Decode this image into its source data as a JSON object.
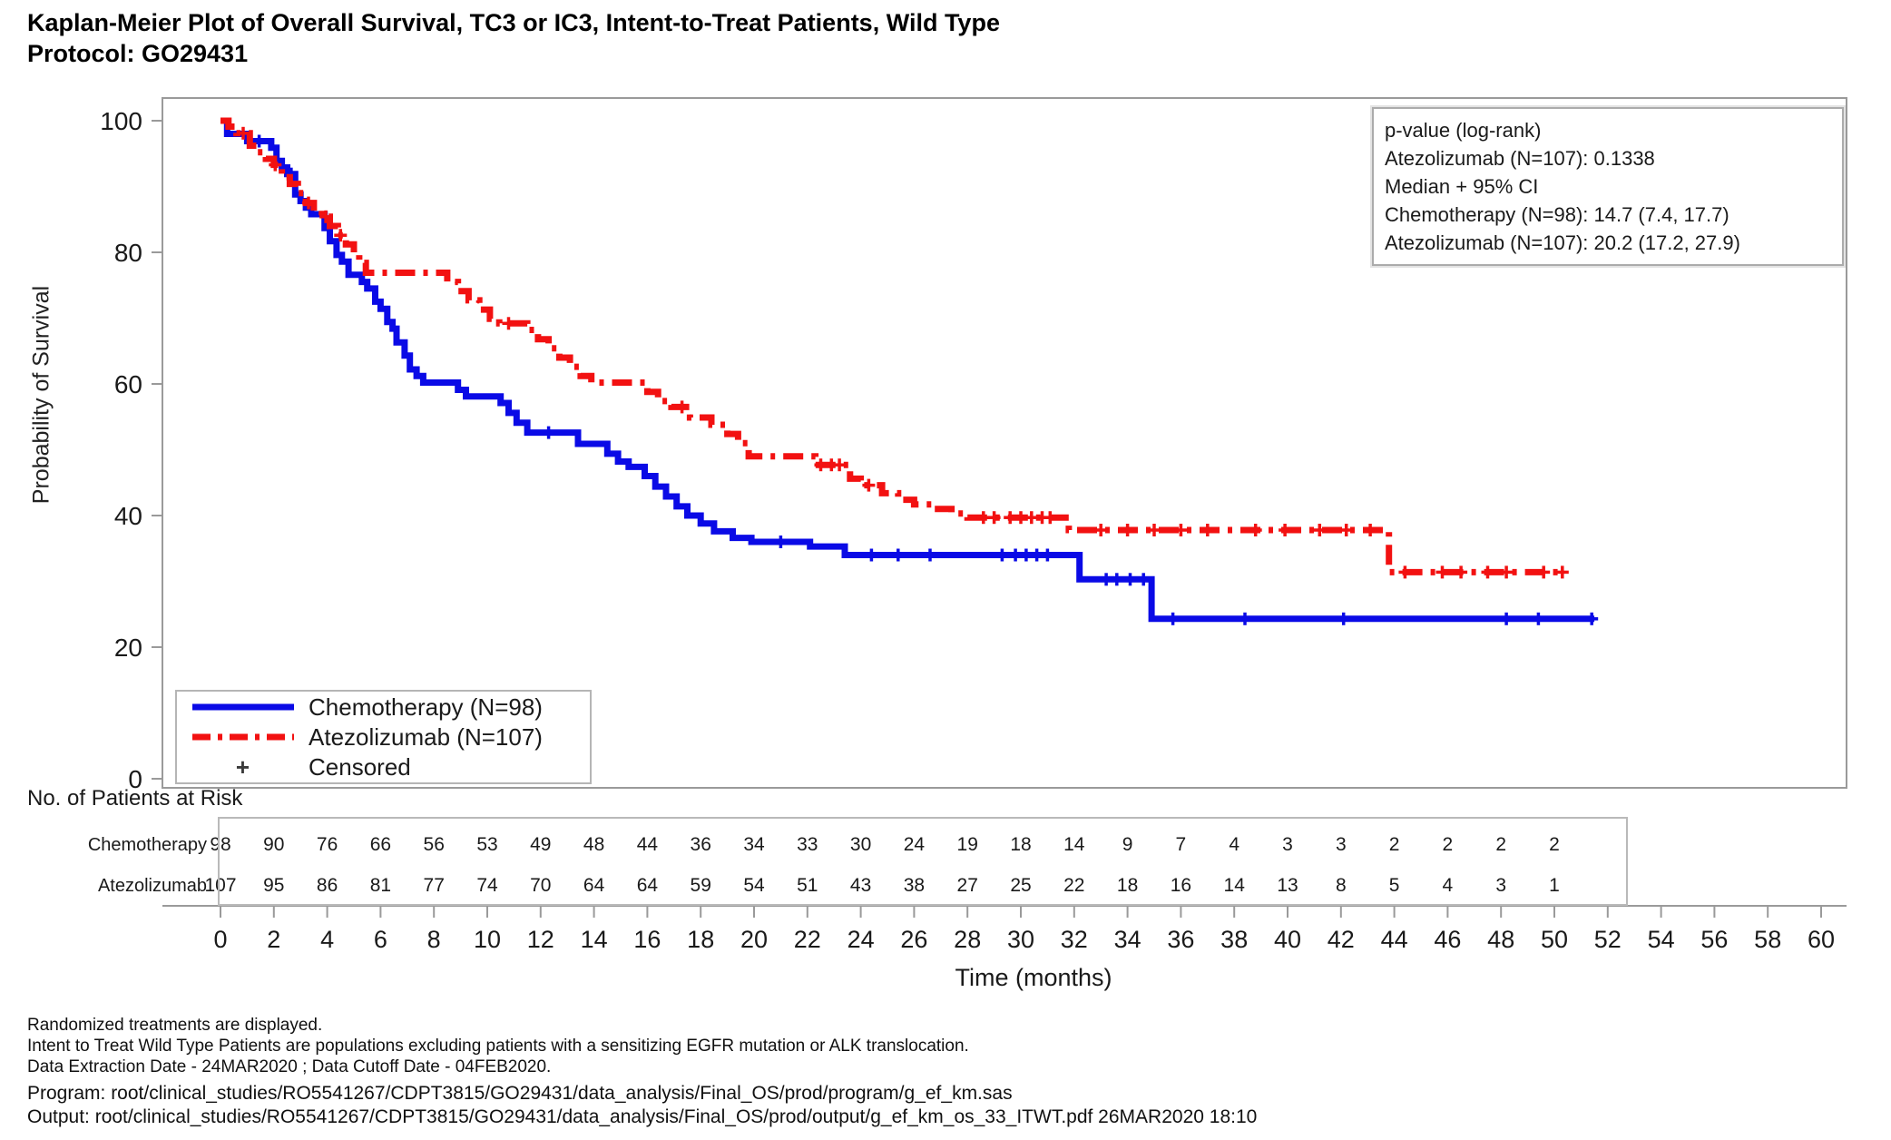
{
  "title": {
    "line1": "Kaplan-Meier Plot of Overall Survival, TC3 or IC3, Intent-to-Treat Patients, Wild Type",
    "line2": "Protocol: GO29431"
  },
  "stats_box": {
    "lines": [
      "p-value (log-rank)",
      "Atezolizumab (N=107): 0.1338",
      "Median + 95% CI",
      "Chemotherapy (N=98): 14.7 (7.4, 17.7)",
      "Atezolizumab (N=107): 20.2 (17.2, 27.9)"
    ]
  },
  "legend": {
    "items": [
      {
        "label": "Chemotherapy (N=98)",
        "glyph": "solid-line",
        "color": "#0a0ae6"
      },
      {
        "label": "Atezolizumab (N=107)",
        "glyph": "dash-dot-line",
        "color": "#f21111"
      },
      {
        "label": "Censored",
        "glyph": "plus-mark",
        "color": "#3a3a3a",
        "symbol": "+"
      }
    ]
  },
  "risk_table": {
    "title": "No. of Patients at Risk",
    "time_points": [
      0,
      2,
      4,
      6,
      8,
      10,
      12,
      14,
      16,
      18,
      20,
      22,
      24,
      26,
      28,
      30,
      32,
      34,
      36,
      38,
      40,
      42,
      44,
      46,
      48,
      50
    ],
    "rows": [
      {
        "label": "Chemotherapy",
        "values": [
          98,
          90,
          76,
          66,
          56,
          53,
          49,
          48,
          44,
          36,
          34,
          33,
          30,
          24,
          19,
          18,
          14,
          9,
          7,
          4,
          3,
          3,
          2,
          2,
          2,
          2
        ]
      },
      {
        "label": "Atezolizumab",
        "values": [
          107,
          95,
          86,
          81,
          77,
          74,
          70,
          64,
          64,
          59,
          54,
          51,
          43,
          38,
          27,
          25,
          22,
          18,
          16,
          14,
          13,
          8,
          5,
          4,
          3,
          1
        ]
      }
    ]
  },
  "footnotes": [
    "Randomized treatments are displayed.",
    "Intent to Treat Wild Type Patients are populations excluding patients with a sensitizing EGFR mutation or ALK translocation.",
    "Data Extraction Date - 24MAR2020 ; Data Cutoff Date - 04FEB2020.",
    "Program: root/clinical_studies/RO5541267/CDPT3815/GO29431/data_analysis/Final_OS/prod/program/g_ef_km.sas",
    "Output: root/clinical_studies/RO5541267/CDPT3815/GO29431/data_analysis/Final_OS/prod/output/g_ef_km_os_33_ITWT.pdf 26MAR2020 18:10"
  ],
  "chart_data": {
    "type": "line",
    "subtype": "kaplan-meier-step",
    "title": "Kaplan-Meier Plot of Overall Survival, TC3 or IC3, Intent-to-Treat Patients, Wild Type",
    "xlabel": "Time (months)",
    "ylabel": "Probability of Survival",
    "xlim": [
      0,
      60
    ],
    "xtick_step": 2,
    "ylim": [
      0,
      100
    ],
    "yticks": [
      0,
      20,
      40,
      60,
      80,
      100
    ],
    "grid": false,
    "legend_position": "inside-bottom-left",
    "series": [
      {
        "name": "Chemotherapy (N=98)",
        "color": "#0a0ae6",
        "style": "solid",
        "end_time": 51.5,
        "points": [
          [
            0,
            100
          ],
          [
            0.25,
            98
          ],
          [
            1.0,
            96.9
          ],
          [
            1.9,
            95.9
          ],
          [
            2.1,
            93.9
          ],
          [
            2.3,
            92.9
          ],
          [
            2.5,
            91.9
          ],
          [
            2.8,
            88.8
          ],
          [
            3.0,
            87.8
          ],
          [
            3.2,
            86.8
          ],
          [
            3.4,
            85.8
          ],
          [
            3.9,
            83.7
          ],
          [
            4.1,
            81.7
          ],
          [
            4.35,
            79.6
          ],
          [
            4.55,
            78.6
          ],
          [
            4.8,
            76.6
          ],
          [
            5.3,
            75.5
          ],
          [
            5.5,
            74.5
          ],
          [
            5.8,
            72.5
          ],
          [
            6.0,
            71.4
          ],
          [
            6.25,
            69.4
          ],
          [
            6.45,
            68.4
          ],
          [
            6.6,
            66.3
          ],
          [
            6.9,
            64.3
          ],
          [
            7.1,
            62.2
          ],
          [
            7.35,
            61.2
          ],
          [
            7.6,
            60.2
          ],
          [
            8.9,
            59.1
          ],
          [
            9.2,
            58.1
          ],
          [
            10.5,
            57.1
          ],
          [
            10.8,
            55.6
          ],
          [
            11.1,
            54.1
          ],
          [
            11.5,
            52.6
          ],
          [
            13.4,
            50.9
          ],
          [
            14.5,
            49.4
          ],
          [
            14.9,
            48.2
          ],
          [
            15.3,
            47.4
          ],
          [
            15.9,
            46.0
          ],
          [
            16.3,
            44.4
          ],
          [
            16.7,
            42.9
          ],
          [
            17.1,
            41.4
          ],
          [
            17.5,
            40.0
          ],
          [
            18.0,
            38.8
          ],
          [
            18.5,
            37.6
          ],
          [
            19.2,
            36.6
          ],
          [
            19.9,
            36.0
          ],
          [
            22.1,
            35.3
          ],
          [
            23.4,
            34.0
          ],
          [
            32.2,
            30.3
          ],
          [
            34.9,
            24.3
          ]
        ],
        "censored": [
          [
            1.15,
            96.9
          ],
          [
            1.45,
            96.9
          ],
          [
            2.65,
            91.9
          ],
          [
            12.3,
            52.6
          ],
          [
            21.0,
            36.0
          ],
          [
            24.4,
            34.0
          ],
          [
            25.4,
            34.0
          ],
          [
            26.6,
            34.0
          ],
          [
            29.3,
            34.0
          ],
          [
            29.8,
            34.0
          ],
          [
            30.2,
            34.0
          ],
          [
            30.6,
            34.0
          ],
          [
            31.0,
            34.0
          ],
          [
            33.2,
            30.3
          ],
          [
            33.6,
            30.3
          ],
          [
            34.1,
            30.3
          ],
          [
            34.6,
            30.3
          ],
          [
            35.7,
            24.3
          ],
          [
            38.4,
            24.3
          ],
          [
            42.1,
            24.3
          ],
          [
            48.2,
            24.3
          ],
          [
            49.4,
            24.3
          ],
          [
            51.4,
            24.3
          ]
        ]
      },
      {
        "name": "Atezolizumab (N=107)",
        "color": "#f21111",
        "style": "dash-dot",
        "end_time": 50.4,
        "points": [
          [
            0,
            100
          ],
          [
            0.3,
            99.1
          ],
          [
            0.6,
            98.1
          ],
          [
            1.1,
            96.2
          ],
          [
            1.4,
            95.2
          ],
          [
            1.7,
            94.2
          ],
          [
            2.0,
            93.3
          ],
          [
            2.3,
            91.4
          ],
          [
            2.6,
            90.4
          ],
          [
            2.9,
            89.0
          ],
          [
            3.2,
            87.5
          ],
          [
            3.5,
            86.3
          ],
          [
            3.8,
            85.4
          ],
          [
            4.1,
            84.0
          ],
          [
            4.4,
            82.6
          ],
          [
            4.7,
            81.2
          ],
          [
            5.0,
            79.8
          ],
          [
            5.2,
            78.4
          ],
          [
            5.45,
            76.9
          ],
          [
            8.5,
            75.5
          ],
          [
            8.9,
            74.1
          ],
          [
            9.3,
            72.7
          ],
          [
            9.7,
            71.3
          ],
          [
            10.1,
            69.9
          ],
          [
            10.45,
            69.2
          ],
          [
            11.5,
            68.2
          ],
          [
            11.9,
            66.8
          ],
          [
            12.3,
            65.4
          ],
          [
            12.7,
            64.0
          ],
          [
            13.1,
            62.6
          ],
          [
            13.5,
            61.2
          ],
          [
            13.9,
            60.2
          ],
          [
            16.0,
            58.8
          ],
          [
            16.4,
            57.4
          ],
          [
            16.9,
            56.5
          ],
          [
            17.6,
            54.9
          ],
          [
            18.4,
            53.8
          ],
          [
            19.0,
            52.4
          ],
          [
            19.4,
            51.0
          ],
          [
            19.8,
            49.0
          ],
          [
            22.3,
            47.7
          ],
          [
            23.6,
            45.6
          ],
          [
            24.0,
            44.6
          ],
          [
            24.8,
            43.4
          ],
          [
            25.4,
            42.4
          ],
          [
            26.0,
            41.7
          ],
          [
            26.7,
            41.0
          ],
          [
            27.4,
            40.3
          ],
          [
            28.0,
            39.7
          ],
          [
            31.8,
            37.8
          ],
          [
            43.8,
            31.4
          ]
        ],
        "censored": [
          [
            0.85,
            98.1
          ],
          [
            2.05,
            93.3
          ],
          [
            3.3,
            87.5
          ],
          [
            3.95,
            85.4
          ],
          [
            4.5,
            82.6
          ],
          [
            10.8,
            69.2
          ],
          [
            17.3,
            56.5
          ],
          [
            22.5,
            47.7
          ],
          [
            22.9,
            47.7
          ],
          [
            23.2,
            47.7
          ],
          [
            24.3,
            44.6
          ],
          [
            28.6,
            39.7
          ],
          [
            29.0,
            39.7
          ],
          [
            29.6,
            39.7
          ],
          [
            30.0,
            39.7
          ],
          [
            30.4,
            39.7
          ],
          [
            30.8,
            39.7
          ],
          [
            31.1,
            39.7
          ],
          [
            33.0,
            37.8
          ],
          [
            34.0,
            37.8
          ],
          [
            35.0,
            37.8
          ],
          [
            36.0,
            37.8
          ],
          [
            37.0,
            37.8
          ],
          [
            38.8,
            37.8
          ],
          [
            39.9,
            37.8
          ],
          [
            41.2,
            37.8
          ],
          [
            42.2,
            37.8
          ],
          [
            43.1,
            37.8
          ],
          [
            44.4,
            31.4
          ],
          [
            45.8,
            31.4
          ],
          [
            46.5,
            31.4
          ],
          [
            47.5,
            31.4
          ],
          [
            48.2,
            31.4
          ],
          [
            49.6,
            31.4
          ],
          [
            50.3,
            31.4
          ]
        ]
      }
    ]
  }
}
